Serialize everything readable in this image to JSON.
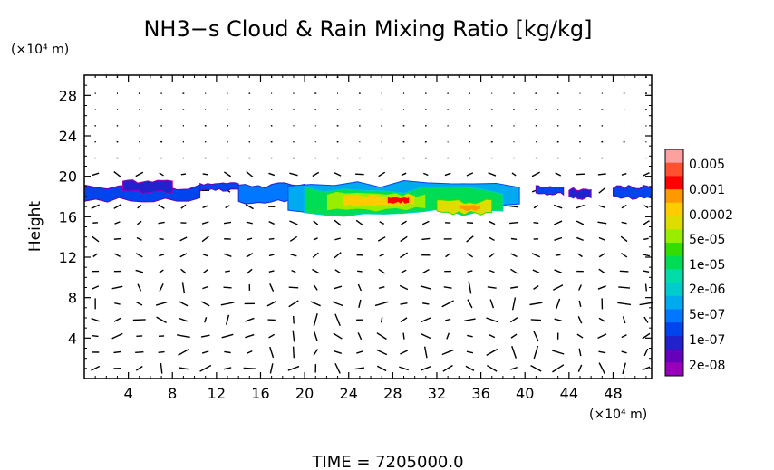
{
  "chart_data": {
    "type": "heatmap",
    "title": "NH3−s Cloud & Rain Mixing Ratio [kg/kg]",
    "ylabel": "Height",
    "y_unit": "(×10⁴ m)",
    "x_unit": "(×10⁴ m)",
    "xlim": [
      0,
      51.5
    ],
    "ylim": [
      0,
      30
    ],
    "x_ticks": [
      "4",
      "8",
      "12",
      "16",
      "20",
      "24",
      "28",
      "32",
      "36",
      "40",
      "44",
      "48"
    ],
    "y_ticks": [
      "4",
      "8",
      "12",
      "16",
      "20",
      "24",
      "28"
    ],
    "grid": false,
    "overlay": "wind vectors",
    "colorbar": {
      "position": "right",
      "labels": [
        "0.005",
        "0.001",
        "0.0002",
        "5e-05",
        "1e-05",
        "2e-06",
        "5e-07",
        "1e-07",
        "2e-08"
      ],
      "colors": [
        "#ffa0a0",
        "#ff5030",
        "#ff0000",
        "#ff9900",
        "#ffcc00",
        "#dddd00",
        "#99ee00",
        "#33dd00",
        "#00dd55",
        "#00ddaa",
        "#00cccc",
        "#00aaee",
        "#0077ff",
        "#0044ee",
        "#2222cc",
        "#6600bb",
        "#9900bb"
      ]
    },
    "cloud_layer": {
      "x_range": [
        0,
        51.5
      ],
      "y_range": [
        16,
        20
      ],
      "peak_value": "0.001",
      "peak_x": [
        28,
        34
      ],
      "peak_y": 17
    }
  },
  "footer": {
    "time_label": "TIME = 7205000.0"
  }
}
